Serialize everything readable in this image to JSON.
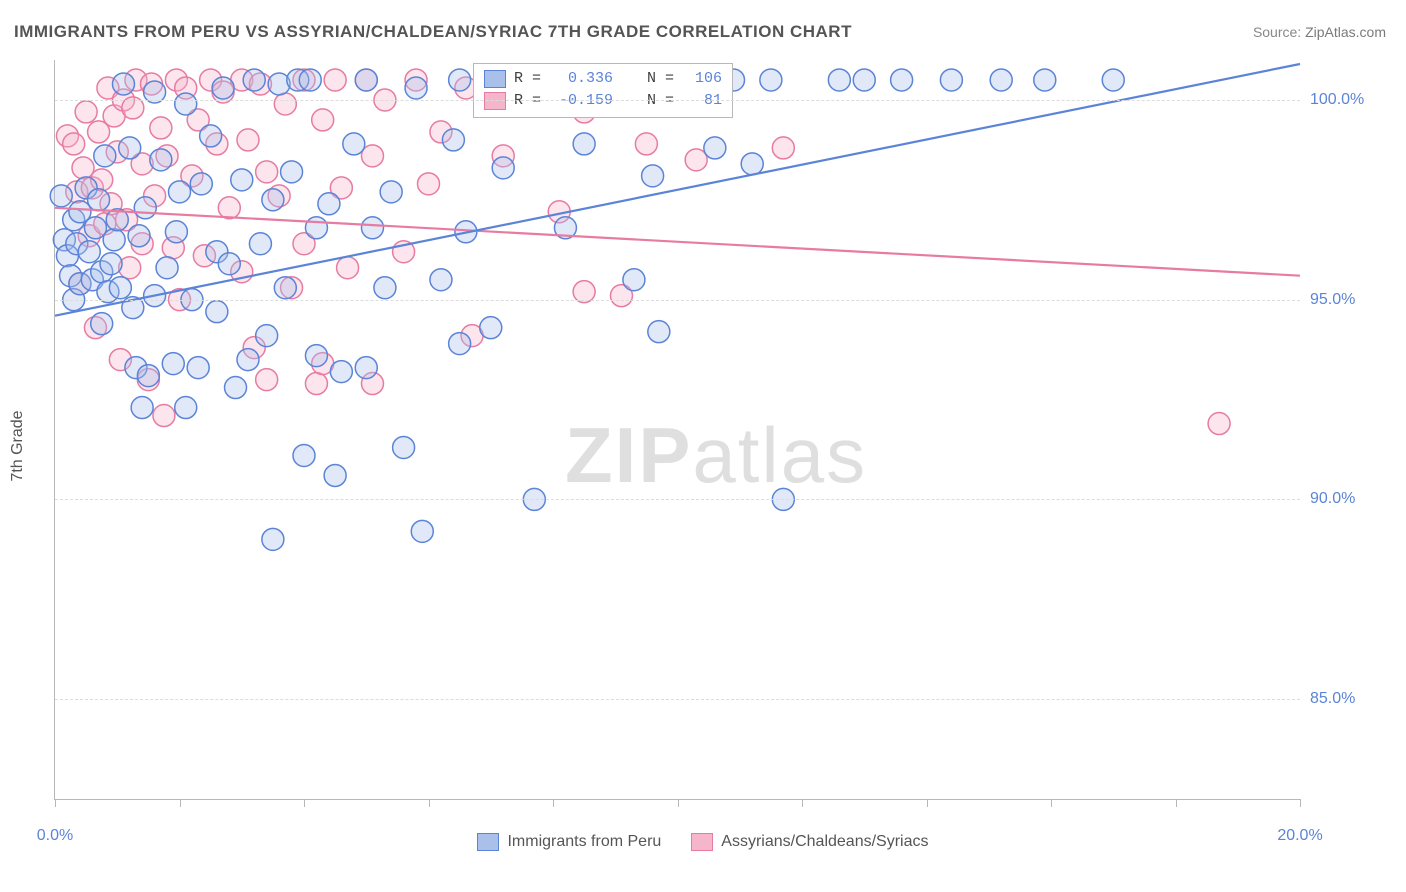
{
  "title": "IMMIGRANTS FROM PERU VS ASSYRIAN/CHALDEAN/SYRIAC 7TH GRADE CORRELATION CHART",
  "source_label": "Source: ",
  "source_name": "ZipAtlas.com",
  "ylabel": "7th Grade",
  "watermark": {
    "part1": "ZIP",
    "part2": "atlas"
  },
  "chart": {
    "type": "scatter-with-regression",
    "xlim": [
      0,
      20
    ],
    "ylim": [
      82.5,
      101
    ],
    "y_grid_values": [
      85.0,
      90.0,
      95.0,
      100.0
    ],
    "y_tick_labels": [
      "85.0%",
      "90.0%",
      "95.0%",
      "100.0%"
    ],
    "x_tick_values": [
      0,
      2,
      4,
      6,
      8,
      10,
      12,
      14,
      16,
      18,
      20
    ],
    "x_visible_labels": {
      "0": "0.0%",
      "20": "20.0%"
    },
    "background": "#ffffff",
    "grid_dash_color": "#dcdcdc",
    "axis_color": "#b8b8b8",
    "tick_label_color": "#5b84d8",
    "marker_radius": 11,
    "marker_stroke_width": 1.5,
    "marker_fill_opacity": 0.35,
    "line_width": 2.2
  },
  "series": [
    {
      "name": "Immigrants from Peru",
      "stroke": "#5b84d8",
      "fill": "#a9c1ea",
      "R": "0.336",
      "N": "106",
      "regression": {
        "x1": 0,
        "y1": 94.6,
        "x2": 20,
        "y2": 100.9
      },
      "points": [
        [
          0.1,
          97.6
        ],
        [
          0.15,
          96.5
        ],
        [
          0.2,
          96.1
        ],
        [
          0.25,
          95.6
        ],
        [
          0.3,
          95.0
        ],
        [
          0.3,
          97.0
        ],
        [
          0.35,
          96.4
        ],
        [
          0.4,
          97.2
        ],
        [
          0.4,
          95.4
        ],
        [
          0.5,
          97.8
        ],
        [
          0.55,
          96.2
        ],
        [
          0.6,
          95.5
        ],
        [
          0.65,
          96.8
        ],
        [
          0.7,
          97.5
        ],
        [
          0.75,
          95.7
        ],
        [
          0.75,
          94.4
        ],
        [
          0.8,
          98.6
        ],
        [
          0.85,
          95.2
        ],
        [
          0.9,
          95.9
        ],
        [
          0.95,
          96.5
        ],
        [
          1.0,
          97.0
        ],
        [
          1.05,
          95.3
        ],
        [
          1.1,
          100.4
        ],
        [
          1.2,
          98.8
        ],
        [
          1.25,
          94.8
        ],
        [
          1.3,
          93.3
        ],
        [
          1.35,
          96.6
        ],
        [
          1.4,
          92.3
        ],
        [
          1.45,
          97.3
        ],
        [
          1.5,
          93.1
        ],
        [
          1.6,
          95.1
        ],
        [
          1.6,
          100.2
        ],
        [
          1.7,
          98.5
        ],
        [
          1.8,
          95.8
        ],
        [
          1.9,
          93.4
        ],
        [
          1.95,
          96.7
        ],
        [
          2.0,
          97.7
        ],
        [
          2.1,
          92.3
        ],
        [
          2.1,
          99.9
        ],
        [
          2.2,
          95.0
        ],
        [
          2.3,
          93.3
        ],
        [
          2.35,
          97.9
        ],
        [
          2.5,
          99.1
        ],
        [
          2.6,
          94.7
        ],
        [
          2.6,
          96.2
        ],
        [
          2.7,
          100.3
        ],
        [
          2.8,
          95.9
        ],
        [
          2.9,
          92.8
        ],
        [
          3.0,
          98.0
        ],
        [
          3.1,
          93.5
        ],
        [
          3.2,
          100.5
        ],
        [
          3.3,
          96.4
        ],
        [
          3.4,
          94.1
        ],
        [
          3.5,
          89.0
        ],
        [
          3.5,
          97.5
        ],
        [
          3.6,
          100.4
        ],
        [
          3.7,
          95.3
        ],
        [
          3.8,
          98.2
        ],
        [
          3.9,
          100.5
        ],
        [
          4.0,
          91.1
        ],
        [
          4.1,
          100.5
        ],
        [
          4.2,
          93.6
        ],
        [
          4.2,
          96.8
        ],
        [
          4.4,
          97.4
        ],
        [
          4.5,
          90.6
        ],
        [
          4.6,
          93.2
        ],
        [
          4.8,
          98.9
        ],
        [
          5.0,
          100.5
        ],
        [
          5.0,
          93.3
        ],
        [
          5.1,
          96.8
        ],
        [
          5.3,
          95.3
        ],
        [
          5.4,
          97.7
        ],
        [
          5.6,
          91.3
        ],
        [
          5.8,
          100.3
        ],
        [
          5.9,
          89.2
        ],
        [
          6.2,
          95.5
        ],
        [
          6.4,
          99.0
        ],
        [
          6.5,
          100.5
        ],
        [
          6.5,
          93.9
        ],
        [
          6.6,
          96.7
        ],
        [
          7.0,
          94.3
        ],
        [
          7.2,
          98.3
        ],
        [
          7.5,
          100.5
        ],
        [
          7.7,
          90.0
        ],
        [
          8.0,
          100.5
        ],
        [
          8.2,
          96.8
        ],
        [
          8.5,
          98.9
        ],
        [
          8.8,
          100.5
        ],
        [
          9.3,
          95.5
        ],
        [
          9.6,
          98.1
        ],
        [
          9.7,
          94.2
        ],
        [
          10.2,
          100.5
        ],
        [
          10.6,
          98.8
        ],
        [
          10.9,
          100.5
        ],
        [
          11.2,
          98.4
        ],
        [
          11.5,
          100.5
        ],
        [
          11.7,
          90.0
        ],
        [
          12.6,
          100.5
        ],
        [
          13.0,
          100.5
        ],
        [
          13.6,
          100.5
        ],
        [
          14.4,
          100.5
        ],
        [
          15.2,
          100.5
        ],
        [
          15.9,
          100.5
        ],
        [
          17.0,
          100.5
        ]
      ]
    },
    {
      "name": "Assyrians/Chaldeans/Syriacs",
      "stroke": "#e77ba2",
      "fill": "#f5b5ca",
      "R": "-0.159",
      "N": "81",
      "regression": {
        "x1": 0,
        "y1": 97.3,
        "x2": 20,
        "y2": 95.6
      },
      "points": [
        [
          0.2,
          99.1
        ],
        [
          0.3,
          98.9
        ],
        [
          0.35,
          97.7
        ],
        [
          0.4,
          95.4
        ],
        [
          0.45,
          98.3
        ],
        [
          0.5,
          99.7
        ],
        [
          0.55,
          96.6
        ],
        [
          0.6,
          97.8
        ],
        [
          0.65,
          94.3
        ],
        [
          0.7,
          99.2
        ],
        [
          0.75,
          98.0
        ],
        [
          0.8,
          96.9
        ],
        [
          0.85,
          100.3
        ],
        [
          0.9,
          97.4
        ],
        [
          0.95,
          99.6
        ],
        [
          1.0,
          98.7
        ],
        [
          1.05,
          93.5
        ],
        [
          1.1,
          100.0
        ],
        [
          1.15,
          97.0
        ],
        [
          1.2,
          95.8
        ],
        [
          1.25,
          99.8
        ],
        [
          1.3,
          100.5
        ],
        [
          1.4,
          98.4
        ],
        [
          1.4,
          96.4
        ],
        [
          1.5,
          93.0
        ],
        [
          1.55,
          100.4
        ],
        [
          1.6,
          97.6
        ],
        [
          1.7,
          99.3
        ],
        [
          1.75,
          92.1
        ],
        [
          1.8,
          98.6
        ],
        [
          1.9,
          96.3
        ],
        [
          1.95,
          100.5
        ],
        [
          2.0,
          95.0
        ],
        [
          2.1,
          100.3
        ],
        [
          2.2,
          98.1
        ],
        [
          2.3,
          99.5
        ],
        [
          2.4,
          96.1
        ],
        [
          2.5,
          100.5
        ],
        [
          2.6,
          98.9
        ],
        [
          2.7,
          100.2
        ],
        [
          2.8,
          97.3
        ],
        [
          3.0,
          95.7
        ],
        [
          3.0,
          100.5
        ],
        [
          3.1,
          99.0
        ],
        [
          3.2,
          93.8
        ],
        [
          3.3,
          100.4
        ],
        [
          3.4,
          98.2
        ],
        [
          3.4,
          93.0
        ],
        [
          3.6,
          97.6
        ],
        [
          3.7,
          99.9
        ],
        [
          3.8,
          95.3
        ],
        [
          4.0,
          100.5
        ],
        [
          4.0,
          96.4
        ],
        [
          4.2,
          92.9
        ],
        [
          4.3,
          99.5
        ],
        [
          4.3,
          93.4
        ],
        [
          4.5,
          100.5
        ],
        [
          4.6,
          97.8
        ],
        [
          4.7,
          95.8
        ],
        [
          5.0,
          100.5
        ],
        [
          5.1,
          98.6
        ],
        [
          5.1,
          92.9
        ],
        [
          5.3,
          100.0
        ],
        [
          5.6,
          96.2
        ],
        [
          5.8,
          100.5
        ],
        [
          6.0,
          97.9
        ],
        [
          6.2,
          99.2
        ],
        [
          6.6,
          100.3
        ],
        [
          6.7,
          94.1
        ],
        [
          7.0,
          100.5
        ],
        [
          7.2,
          98.6
        ],
        [
          7.6,
          100.5
        ],
        [
          8.1,
          97.2
        ],
        [
          8.5,
          99.7
        ],
        [
          8.5,
          95.2
        ],
        [
          9.1,
          95.1
        ],
        [
          9.5,
          98.9
        ],
        [
          10.3,
          98.5
        ],
        [
          11.7,
          98.8
        ],
        [
          18.7,
          91.9
        ]
      ]
    }
  ],
  "legend_top": {
    "r_label": "R =",
    "n_label": "N ="
  },
  "legend_bottom": [
    {
      "label": "Immigrants from Peru",
      "fill": "#a9c1ea",
      "stroke": "#5b84d8"
    },
    {
      "label": "Assyrians/Chaldeans/Syriacs",
      "fill": "#f5b5ca",
      "stroke": "#e77ba2"
    }
  ]
}
